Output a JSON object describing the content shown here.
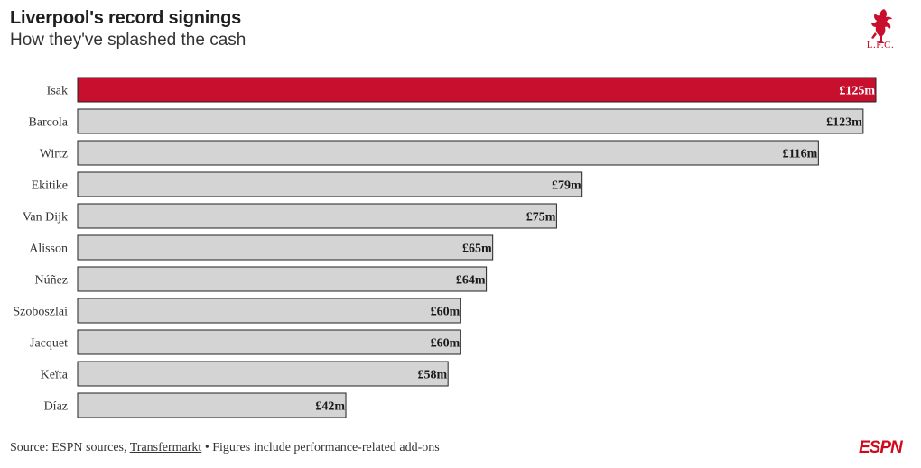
{
  "header": {
    "title": "Liverpool's record signings",
    "subtitle": "How they've splashed the cash",
    "logo_text": "L.F.C.",
    "logo_icon": "liverbird-icon"
  },
  "colors": {
    "highlight": "#c8102e",
    "bar": "#d4d4d4",
    "bar_stroke": "#222222"
  },
  "chart_data": {
    "type": "bar",
    "orientation": "horizontal",
    "categories": [
      "Isak",
      "Barcola",
      "Wirtz",
      "Ekitike",
      "Van Dijk",
      "Alisson",
      "Núñez",
      "Szoboszlai",
      "Jacquet",
      "Keïta",
      "Díaz"
    ],
    "values": [
      125,
      123,
      116,
      79,
      75,
      65,
      64,
      60,
      60,
      58,
      42
    ],
    "value_labels": [
      "£125m",
      "£123m",
      "£116m",
      "£79m",
      "£75m",
      "£65m",
      "£64m",
      "£60m",
      "£60m",
      "£58m",
      "£42m"
    ],
    "unit": "£m",
    "highlight_index": 0,
    "xlim": [
      0,
      125
    ],
    "grid": false,
    "legend": "none"
  },
  "footer": {
    "source_prefix": "Source: ESPN sources, ",
    "source_link": "Transfermarkt",
    "source_suffix": " • Figures include performance-related add-ons",
    "brand": "ESPN"
  }
}
